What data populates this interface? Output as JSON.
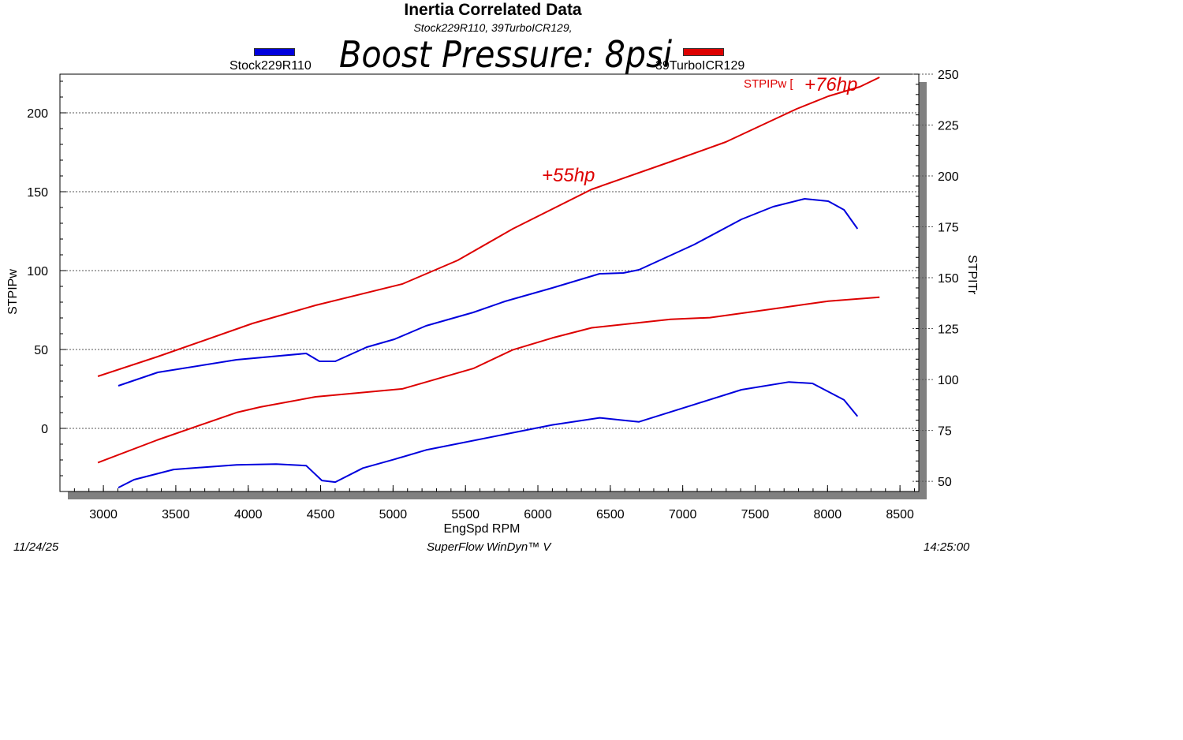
{
  "chart_data": {
    "type": "line",
    "title": "Inertia Correlated Data",
    "subtitle": "Stock229R110, 39TurboICR129,",
    "banner": "Boost Pressure: 8psi",
    "xlabel": "EngSpd RPM",
    "ylabel_left": "STPIPw",
    "ylabel_right": "STPITr",
    "xlim": [
      2700,
      8630
    ],
    "ylim_left": [
      -40,
      224.5
    ],
    "ylim_right": [
      45,
      250
    ],
    "xticks": [
      3000,
      3500,
      4000,
      4500,
      5000,
      5500,
      6000,
      6500,
      7000,
      7500,
      8000,
      8500
    ],
    "yticks_left": [
      0,
      50,
      100,
      150,
      200
    ],
    "yticks_right": [
      50,
      75,
      100,
      125,
      150,
      175,
      200,
      225,
      250
    ],
    "grid": true,
    "legend": [
      {
        "name": "Stock229R110",
        "color": "#0000dd"
      },
      {
        "name": "39TurboICR129",
        "color": "#dd0000"
      }
    ],
    "series": [
      {
        "name": "39TurboICR129 STPIPw",
        "axis": "left",
        "color": "#dd0000",
        "x": [
          2962,
          3376,
          4029,
          4465,
          5064,
          5446,
          5827,
          6371,
          6916,
          7297,
          7787,
          8005,
          8223,
          8359
        ],
        "y": [
          33,
          45.5,
          66.5,
          78,
          91.5,
          106.5,
          126.5,
          151.5,
          169,
          181.5,
          202.5,
          210.5,
          216.5,
          222.5
        ]
      },
      {
        "name": "Stock229R110 STPIPw",
        "axis": "left",
        "color": "#0000dd",
        "x": [
          3103,
          3376,
          3920,
          4400,
          4492,
          4601,
          4819,
          5010,
          5228,
          5554,
          5773,
          6099,
          6426,
          6590,
          6698,
          7079,
          7406,
          7624,
          7842,
          8005,
          8114,
          8207
        ],
        "y": [
          27,
          35.5,
          43.5,
          47.5,
          42.5,
          42.5,
          51.5,
          56.5,
          65,
          73.5,
          80.5,
          89,
          98,
          98.5,
          100.5,
          116.5,
          132.5,
          140.5,
          145.5,
          144,
          138.5,
          126.5
        ]
      },
      {
        "name": "39TurboICR129 STPITr",
        "axis": "right",
        "color": "#dd0000",
        "x": [
          2962,
          3376,
          3920,
          4084,
          4465,
          5064,
          5554,
          5827,
          6099,
          6371,
          6916,
          7188,
          7733,
          8005,
          8359
        ],
        "y": [
          59.2,
          70.4,
          83.8,
          86.5,
          91.5,
          95.4,
          105.4,
          114.6,
          120.4,
          125.4,
          129.6,
          130.4,
          135.8,
          138.5,
          140.4
        ]
      },
      {
        "name": "Stock229R110 STPITr",
        "axis": "right",
        "color": "#0000dd",
        "x": [
          3103,
          3212,
          3485,
          3920,
          4193,
          4400,
          4509,
          4601,
          4792,
          5010,
          5228,
          5773,
          6099,
          6426,
          6590,
          6698,
          7079,
          7406,
          7733,
          7896,
          8114,
          8207
        ],
        "y": [
          46.9,
          50.8,
          55.8,
          58.1,
          58.5,
          57.7,
          50.4,
          49.6,
          56.5,
          60.8,
          65.4,
          73.1,
          77.7,
          81.2,
          80,
          79.2,
          87.7,
          95,
          98.8,
          98.1,
          90,
          81.9
        ]
      }
    ],
    "annotations": [
      {
        "text": "+55hp",
        "x": 6000,
        "y_left": 160
      },
      {
        "text": "STPIPw [",
        "x": 7800,
        "y_left": 218
      },
      {
        "text": "+76hp",
        "x": 8050,
        "y_left": 217
      }
    ]
  },
  "footer": {
    "date": "11/24/25",
    "software": "SuperFlow WinDyn™ V",
    "time": "14:25:00"
  }
}
